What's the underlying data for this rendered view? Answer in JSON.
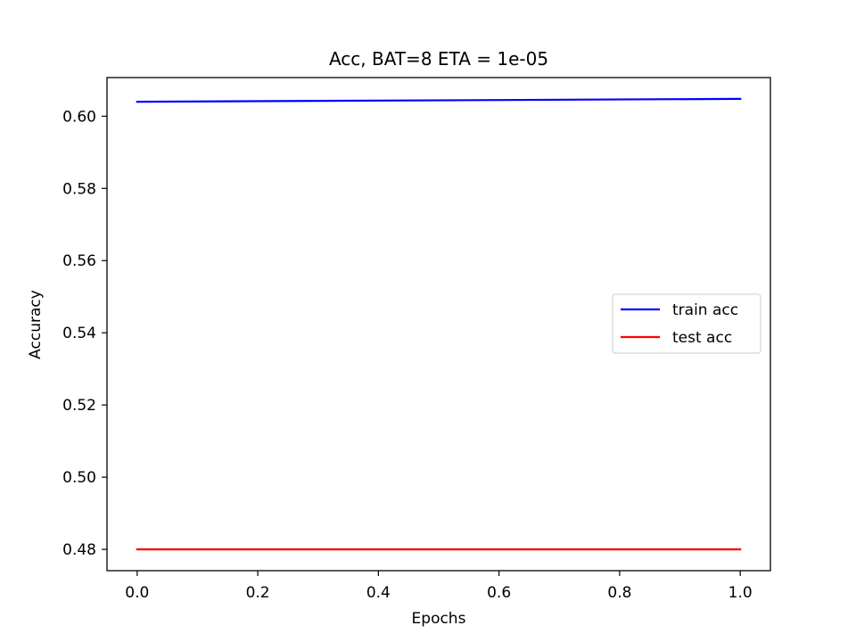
{
  "chart_data": {
    "type": "line",
    "title": "Acc, BAT=8 ETA = 1e-05",
    "xlabel": "Epochs",
    "ylabel": "Accuracy",
    "x": [
      0.0,
      1.0
    ],
    "xlim": [
      -0.05,
      1.05
    ],
    "ylim": [
      0.4741,
      0.6107
    ],
    "xticks": [
      0.0,
      0.2,
      0.4,
      0.6,
      0.8,
      1.0
    ],
    "xtick_labels": [
      "0.0",
      "0.2",
      "0.4",
      "0.6",
      "0.8",
      "1.0"
    ],
    "yticks": [
      0.48,
      0.5,
      0.52,
      0.54,
      0.56,
      0.58,
      0.6
    ],
    "ytick_labels": [
      "0.48",
      "0.50",
      "0.52",
      "0.54",
      "0.56",
      "0.58",
      "0.60"
    ],
    "grid": false,
    "legend_position": "center-right",
    "series": [
      {
        "name": "train acc",
        "color": "#0000ff",
        "values": [
          0.604,
          0.6048
        ]
      },
      {
        "name": "test acc",
        "color": "#ff0000",
        "values": [
          0.48,
          0.48
        ]
      }
    ]
  }
}
